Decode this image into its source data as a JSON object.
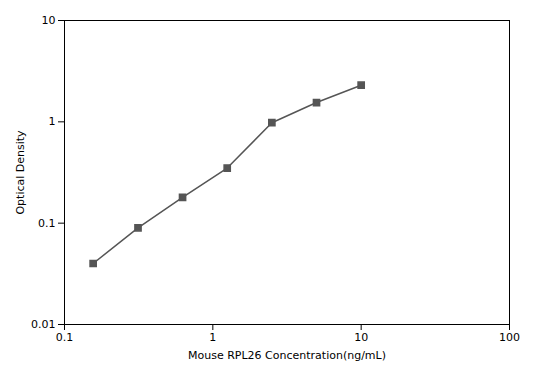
{
  "chart_data": {
    "type": "line",
    "x": [
      0.156,
      0.313,
      0.625,
      1.25,
      2.5,
      5.0,
      10.0
    ],
    "values": [
      0.04,
      0.09,
      0.18,
      0.35,
      0.98,
      1.55,
      2.3
    ],
    "xlabel": "Mouse RPL26 Concentration(ng/mL)",
    "ylabel": "Optical Density",
    "xlim": [
      0.1,
      100
    ],
    "ylim": [
      0.01,
      10
    ],
    "xticks": [
      0.1,
      1,
      10,
      100
    ],
    "yticks": [
      0.01,
      0.1,
      1,
      10
    ],
    "log": true,
    "grid": false,
    "marker": "square",
    "color": "#555555"
  }
}
